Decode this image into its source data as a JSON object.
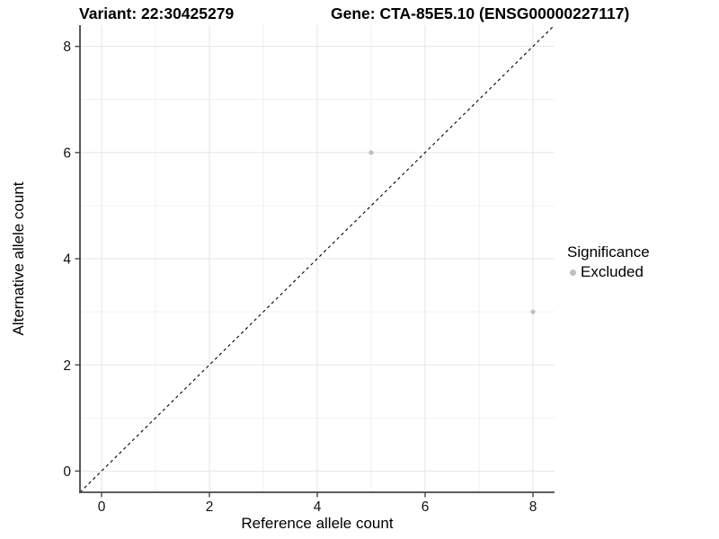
{
  "chart_data": {
    "type": "scatter",
    "title_left": "Variant: 22:30425279",
    "title_right": "Gene: CTA-85E5.10 (ENSG00000227117)",
    "xlabel": "Reference allele count",
    "ylabel": "Alternative allele count",
    "xlim": [
      -0.4,
      8.4
    ],
    "ylim": [
      -0.4,
      8.4
    ],
    "x_ticks": [
      0,
      2,
      4,
      6,
      8
    ],
    "y_ticks": [
      0,
      2,
      4,
      6,
      8
    ],
    "x_minor": [
      1,
      3,
      5,
      7
    ],
    "y_minor": [
      1,
      3,
      5,
      7
    ],
    "grid": true,
    "legend_title": "Significance",
    "legend_position": "right",
    "series": [
      {
        "name": "Excluded",
        "color": "#bebebe",
        "points": [
          {
            "x": 5,
            "y": 6
          },
          {
            "x": 8,
            "y": 3
          }
        ]
      }
    ],
    "reference_line": {
      "type": "identity",
      "style": "dashed",
      "color": "#000000"
    },
    "colors": {
      "grid_major": "#e4e4e4",
      "grid_minor": "#f1f1f1",
      "axis_line": "#474747",
      "tick_label": "#111111"
    }
  }
}
